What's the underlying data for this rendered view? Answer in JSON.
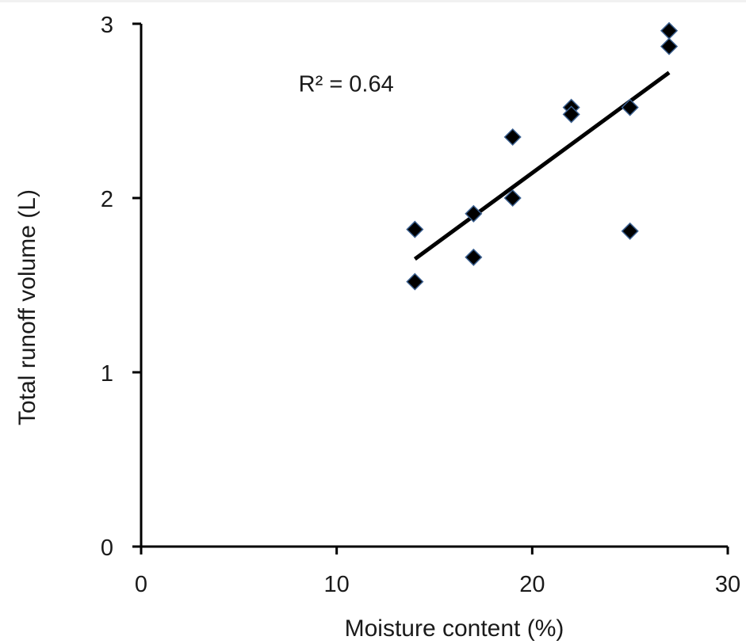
{
  "chart_data": {
    "type": "scatter",
    "xlabel": "Moisture content (%)",
    "ylabel": "Total runoff volume (L)",
    "xlim": [
      0,
      30
    ],
    "ylim": [
      0,
      3
    ],
    "xticks": [
      0,
      10,
      20,
      30
    ],
    "yticks": [
      0,
      1,
      2,
      3
    ],
    "grid": false,
    "marker": "diamond",
    "marker_color": "#000000",
    "marker_edge_color": "#3a5f8f",
    "series": [
      {
        "points": [
          {
            "x": 14,
            "y": 1.82
          },
          {
            "x": 14,
            "y": 1.52
          },
          {
            "x": 17,
            "y": 1.91
          },
          {
            "x": 17,
            "y": 1.66
          },
          {
            "x": 19,
            "y": 2.35
          },
          {
            "x": 19,
            "y": 2.0
          },
          {
            "x": 22,
            "y": 2.52
          },
          {
            "x": 22,
            "y": 2.48
          },
          {
            "x": 25,
            "y": 2.52
          },
          {
            "x": 25,
            "y": 1.81
          },
          {
            "x": 27,
            "y": 2.96
          },
          {
            "x": 27,
            "y": 2.87
          }
        ]
      }
    ],
    "trendline": {
      "type": "linear",
      "x_start": 14,
      "y_start": 1.65,
      "x_end": 27,
      "y_end": 2.72
    },
    "annotations": [
      {
        "text": "R² = 0.64",
        "x": 10,
        "y": 2.72
      }
    ]
  }
}
